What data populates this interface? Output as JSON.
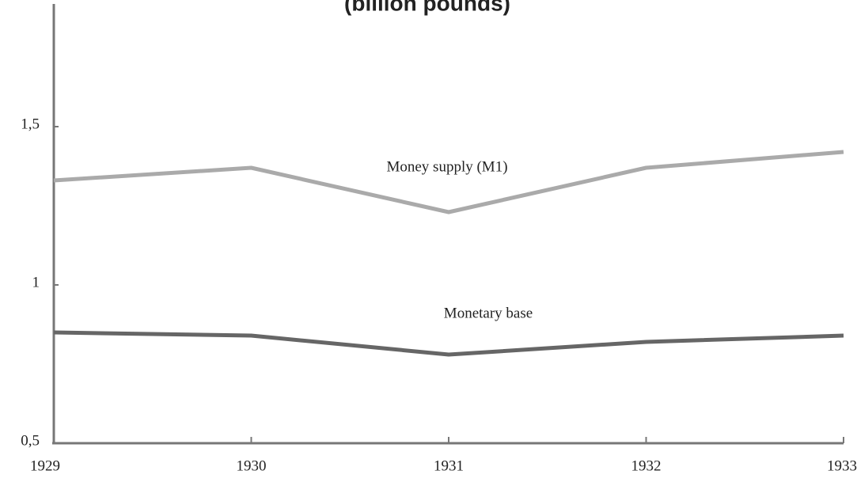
{
  "chart_data": {
    "type": "line",
    "title": "(billion pounds)",
    "x": [
      1929,
      1930,
      1931,
      1932,
      1933
    ],
    "series": [
      {
        "name": "Money supply (M1)",
        "color": "#aaaaaa",
        "values": [
          1.33,
          1.37,
          1.23,
          1.37,
          1.42
        ]
      },
      {
        "name": "Monetary base",
        "color": "#666666",
        "values": [
          0.85,
          0.84,
          0.78,
          0.82,
          0.84
        ]
      }
    ],
    "xlim": [
      1929,
      1933
    ],
    "xticks": [
      1929,
      1930,
      1931,
      1932,
      1933
    ],
    "ylim": [
      0.5,
      1.9
    ],
    "yticks": [
      {
        "value": 0.5,
        "label": "0,5"
      },
      1,
      {
        "value": 1.5,
        "label": "1,5"
      }
    ]
  }
}
